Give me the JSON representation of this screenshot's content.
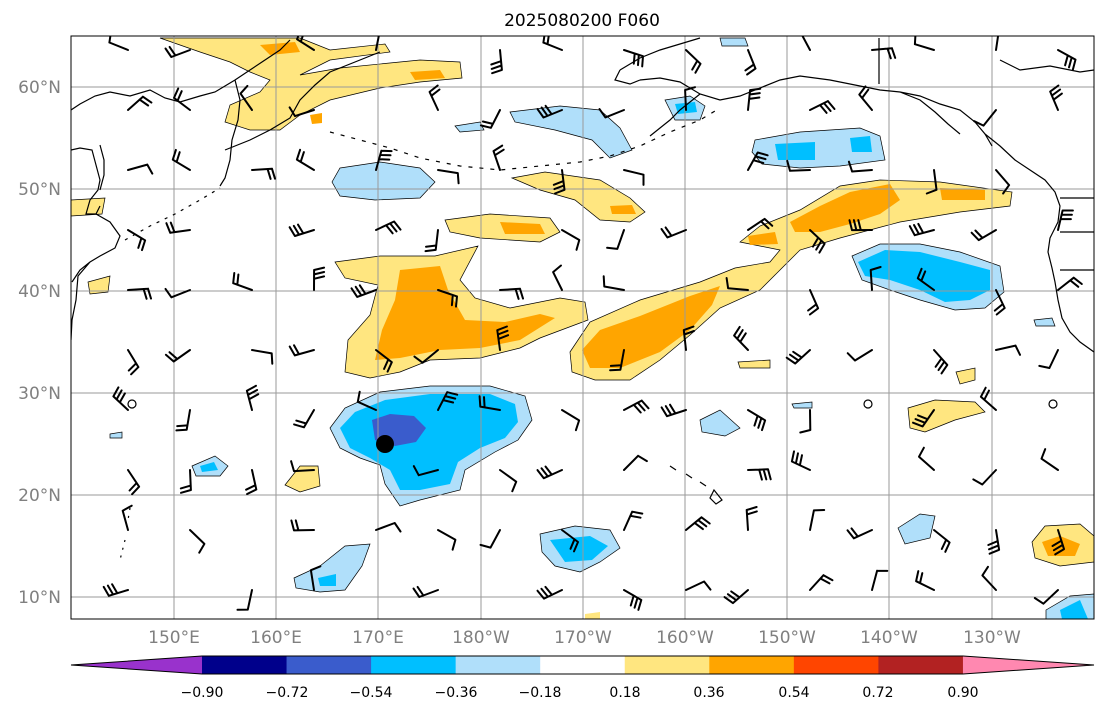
{
  "title": "2025080200 F060",
  "lat_labels": [
    "60°N",
    "50°N",
    "40°N",
    "30°N",
    "20°N",
    "10°N"
  ],
  "lon_labels": [
    "150°E",
    "160°E",
    "170°E",
    "180°W",
    "170°W",
    "160°W",
    "150°W",
    "140°W",
    "130°W"
  ],
  "colorbar": {
    "ticks": [
      "−0.90",
      "−0.72",
      "−0.54",
      "−0.36",
      "−0.18",
      "0.18",
      "0.36",
      "0.54",
      "0.72",
      "0.90"
    ],
    "colors": [
      "#9932CC",
      "#00008B",
      "#3A5CCC",
      "#00BFFF",
      "#B0DFFA",
      "#FFFFFF",
      "#FFE680",
      "#FFA500",
      "#FF4500",
      "#B22222",
      "#FF88B0"
    ]
  },
  "colors": {
    "lightblue": "#B0DFFA",
    "blue": "#00BFFF",
    "royal": "#3A5CCC",
    "yellow": "#FFE680",
    "orange": "#FFA500",
    "grid": "#9a9a9a",
    "coast": "#000000",
    "barb": "#000000"
  },
  "marker": {
    "name": "storm-center-marker",
    "lat": 25.2,
    "lon": 170.8
  }
}
